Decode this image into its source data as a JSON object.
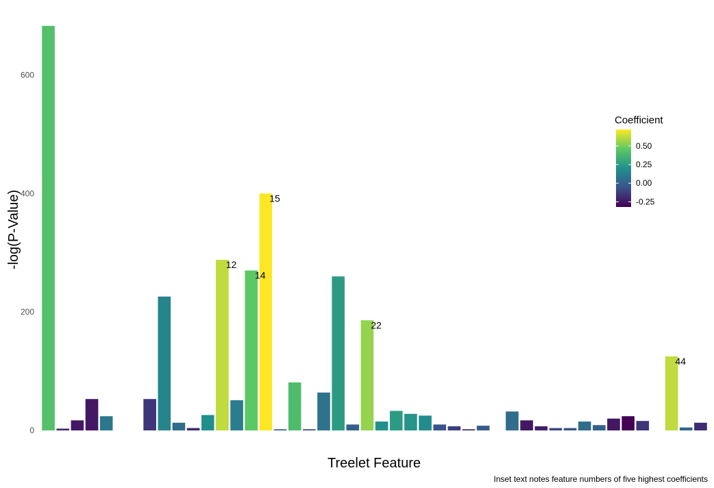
{
  "chart_data": {
    "type": "bar",
    "xlabel": "Treelet Feature",
    "ylabel": "-log(P-Value)",
    "ylim": [
      0,
      685
    ],
    "yticks": [
      0,
      200,
      400,
      600
    ],
    "caption": "Inset text notes feature numbers of five highest coefficients",
    "legend": {
      "title": "Coefficient",
      "placement": "right",
      "range": [
        -0.32,
        0.72
      ],
      "ticks": [
        "0.50",
        "0.25",
        "0.00",
        "-0.25"
      ],
      "tick_values": [
        0.5,
        0.25,
        0.0,
        -0.25
      ]
    },
    "bars": [
      {
        "value": 683,
        "coefficient": 0.42
      },
      {
        "value": 3,
        "coefficient": -0.2
      },
      {
        "value": 17,
        "coefficient": -0.25
      },
      {
        "value": 53,
        "coefficient": -0.25
      },
      {
        "value": 24,
        "coefficient": 0.1
      },
      {
        "value": 0,
        "coefficient": 0.0
      },
      {
        "value": 0,
        "coefficient": 0.0
      },
      {
        "value": 53,
        "coefficient": -0.15
      },
      {
        "value": 226,
        "coefficient": 0.15
      },
      {
        "value": 13,
        "coefficient": 0.05
      },
      {
        "value": 4,
        "coefficient": -0.2
      },
      {
        "value": 26,
        "coefficient": 0.2
      },
      {
        "value": 288,
        "coefficient": 0.62,
        "label": "12"
      },
      {
        "value": 51,
        "coefficient": 0.12
      },
      {
        "value": 270,
        "coefficient": 0.45,
        "label": "14"
      },
      {
        "value": 400,
        "coefficient": 0.72,
        "label": "15"
      },
      {
        "value": 2,
        "coefficient": 0.0
      },
      {
        "value": 81,
        "coefficient": 0.4
      },
      {
        "value": 2,
        "coefficient": -0.1
      },
      {
        "value": 64,
        "coefficient": 0.08
      },
      {
        "value": 260,
        "coefficient": 0.25
      },
      {
        "value": 10,
        "coefficient": 0.0
      },
      {
        "value": 186,
        "coefficient": 0.55,
        "label": "22"
      },
      {
        "value": 15,
        "coefficient": 0.2
      },
      {
        "value": 33,
        "coefficient": 0.25
      },
      {
        "value": 28,
        "coefficient": 0.22
      },
      {
        "value": 25,
        "coefficient": 0.18
      },
      {
        "value": 10,
        "coefficient": -0.05
      },
      {
        "value": 7,
        "coefficient": -0.12
      },
      {
        "value": 2,
        "coefficient": -0.18
      },
      {
        "value": 8,
        "coefficient": -0.02
      },
      {
        "value": 0,
        "coefficient": 0.0
      },
      {
        "value": 32,
        "coefficient": 0.05
      },
      {
        "value": 17,
        "coefficient": -0.25
      },
      {
        "value": 7,
        "coefficient": -0.22
      },
      {
        "value": 4,
        "coefficient": -0.1
      },
      {
        "value": 4,
        "coefficient": -0.05
      },
      {
        "value": 15,
        "coefficient": 0.05
      },
      {
        "value": 9,
        "coefficient": 0.0
      },
      {
        "value": 20,
        "coefficient": -0.25
      },
      {
        "value": 24,
        "coefficient": -0.32
      },
      {
        "value": 16,
        "coefficient": -0.15
      },
      {
        "value": 0,
        "coefficient": 0.0
      },
      {
        "value": 125,
        "coefficient": 0.62,
        "label": "44"
      },
      {
        "value": 5,
        "coefficient": 0.02
      },
      {
        "value": 13,
        "coefficient": -0.18
      }
    ]
  }
}
